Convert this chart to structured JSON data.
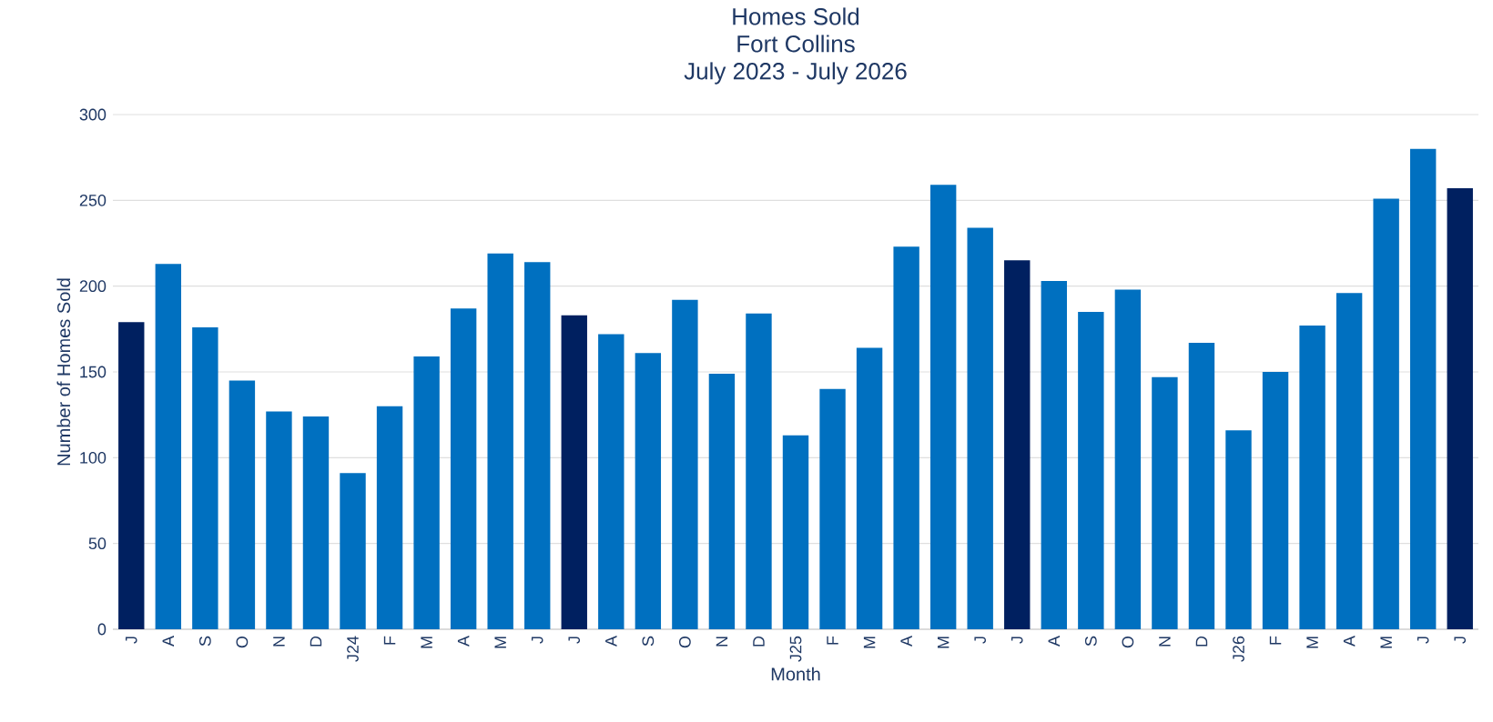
{
  "chart_data": {
    "type": "bar",
    "title": "Homes Sold",
    "subtitle": "Fort Collins\nJuly 2023 - July 2026",
    "xlabel": "Month",
    "ylabel": "Number of Homes Sold",
    "categories": [
      "J",
      "A",
      "S",
      "O",
      "N",
      "D",
      "J24",
      "F",
      "M",
      "A",
      "M",
      "J",
      "J",
      "A",
      "S",
      "O",
      "N",
      "D",
      "J25",
      "F",
      "M",
      "A",
      "M",
      "J",
      "J",
      "A",
      "S",
      "O",
      "N",
      "D",
      "J26",
      "F",
      "M",
      "A",
      "M",
      "J",
      "J"
    ],
    "values": [
      179,
      213,
      176,
      145,
      127,
      124,
      91,
      130,
      159,
      187,
      219,
      214,
      183,
      172,
      161,
      192,
      149,
      184,
      113,
      140,
      164,
      223,
      259,
      234,
      215,
      203,
      185,
      198,
      147,
      167,
      116,
      150,
      177,
      196,
      251,
      280,
      257
    ],
    "colors": [
      "#002060",
      "#0070c0",
      "#0070c0",
      "#0070c0",
      "#0070c0",
      "#0070c0",
      "#0070c0",
      "#0070c0",
      "#0070c0",
      "#0070c0",
      "#0070c0",
      "#0070c0",
      "#002060",
      "#0070c0",
      "#0070c0",
      "#0070c0",
      "#0070c0",
      "#0070c0",
      "#0070c0",
      "#0070c0",
      "#0070c0",
      "#0070c0",
      "#0070c0",
      "#0070c0",
      "#002060",
      "#0070c0",
      "#0070c0",
      "#0070c0",
      "#0070c0",
      "#0070c0",
      "#0070c0",
      "#0070c0",
      "#0070c0",
      "#0070c0",
      "#0070c0",
      "#0070c0",
      "#002060"
    ],
    "ylim": [
      0,
      300
    ],
    "yticks": [
      0,
      50,
      100,
      150,
      200,
      250,
      300
    ],
    "grid": "y"
  }
}
